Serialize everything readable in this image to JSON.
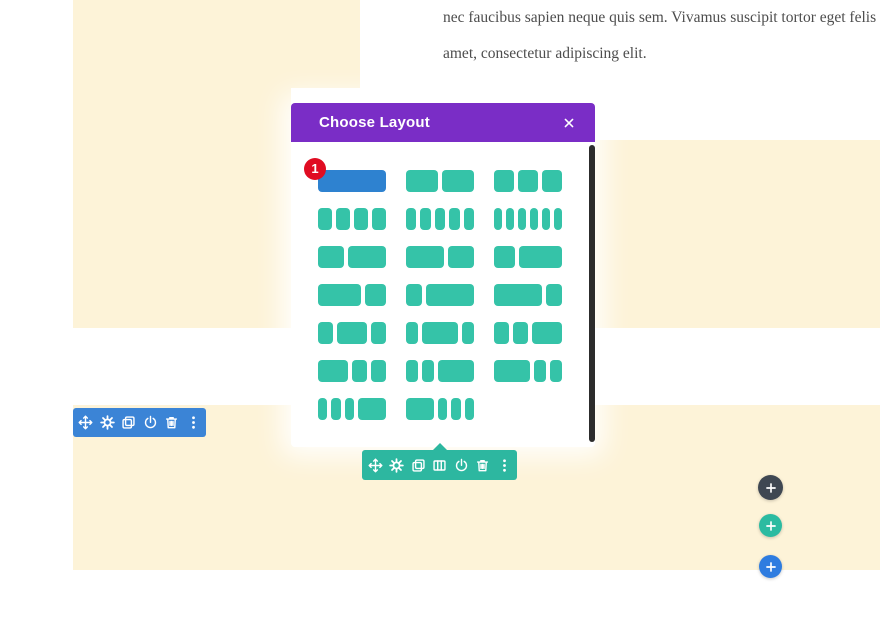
{
  "colors": {
    "section_background": "#fdf3d8",
    "modal_header": "#7a2dc6",
    "layout_block": "#35c3a8",
    "layout_block_selected": "#2e82d0",
    "badge": "#e00c22",
    "section_toolbar": "#3b84d6",
    "row_toolbar": "#2db7a0",
    "fab_dark": "#3f4752",
    "fab_green": "#2bbba1",
    "fab_blue": "#2e7ce0",
    "modal_scrollbar": "#2c2c2c",
    "paragraph_text": "#4d4d4d"
  },
  "page": {
    "paragraph_line1": "nec faucibus sapien neque quis sem. Vivamus suscipit tortor eget felis portt",
    "paragraph_line2": "amet, consectetur adipiscing elit."
  },
  "modal": {
    "title": "Choose Layout",
    "close_icon": "close-icon",
    "selected_badge": "1",
    "layouts": [
      {
        "blocks": [
          1
        ],
        "selected": true
      },
      {
        "blocks": [
          1,
          1
        ]
      },
      {
        "blocks": [
          1,
          1,
          1
        ]
      },
      {
        "blocks": [
          1,
          1,
          1,
          1
        ]
      },
      {
        "blocks": [
          1,
          1,
          1,
          1,
          1
        ]
      },
      {
        "blocks": [
          1,
          1,
          1,
          1,
          1,
          1
        ]
      },
      {
        "blocks": [
          2,
          3
        ]
      },
      {
        "blocks": [
          3,
          2
        ]
      },
      {
        "blocks": [
          1,
          2
        ]
      },
      {
        "blocks": [
          2,
          1
        ]
      },
      {
        "blocks": [
          1,
          3
        ]
      },
      {
        "blocks": [
          3,
          1
        ]
      },
      {
        "blocks": [
          1,
          2,
          1
        ]
      },
      {
        "blocks": [
          1,
          3,
          1
        ]
      },
      {
        "blocks": [
          1,
          1,
          2
        ]
      },
      {
        "blocks": [
          2,
          1,
          1
        ]
      },
      {
        "blocks": [
          1,
          1,
          3
        ]
      },
      {
        "blocks": [
          3,
          1,
          1
        ]
      },
      {
        "blocks": [
          1,
          1,
          1,
          3
        ]
      },
      {
        "blocks": [
          3,
          1,
          1,
          1
        ]
      }
    ]
  },
  "toolbars": {
    "section": {
      "color": "#3b84d6",
      "icons": [
        "move",
        "gear",
        "duplicate",
        "power",
        "trash",
        "options"
      ]
    },
    "row": {
      "color": "#2db7a0",
      "icons": [
        "move",
        "gear",
        "duplicate",
        "columns",
        "power",
        "trash",
        "options"
      ]
    }
  },
  "fabs": [
    {
      "name": "plus-button-dark",
      "color": "#3f4752"
    },
    {
      "name": "plus-button-green",
      "color": "#2bbba1"
    },
    {
      "name": "plus-button-blue",
      "color": "#2e7ce0"
    }
  ]
}
